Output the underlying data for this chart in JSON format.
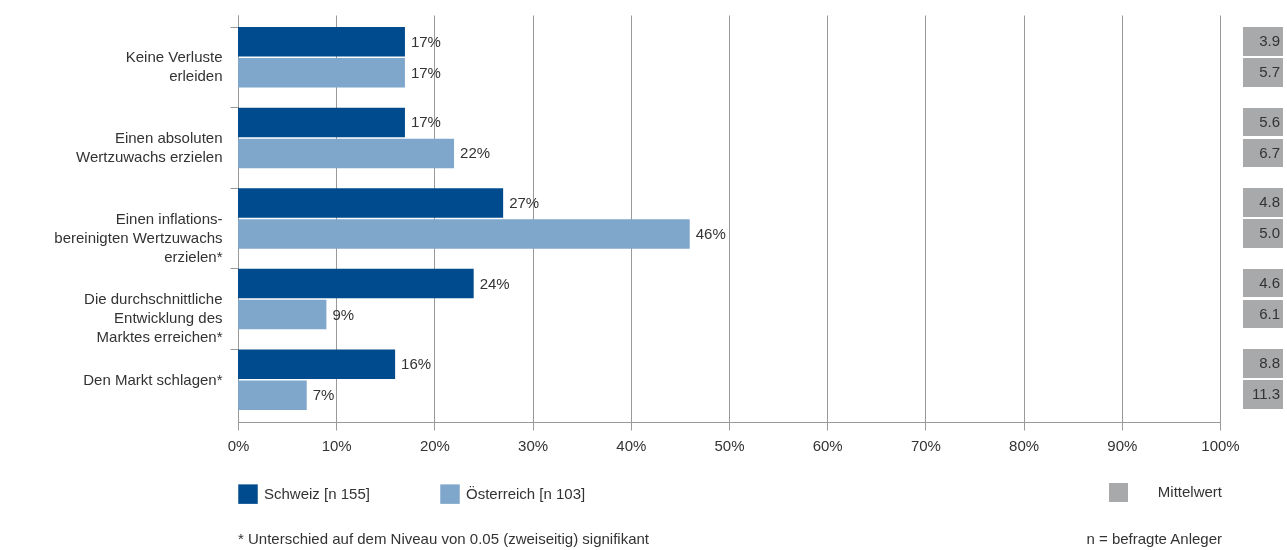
{
  "chart_data": {
    "type": "bar",
    "orientation": "horizontal",
    "categories": [
      "Keine Verluste\nerleiden",
      "Einen absoluten\nWertzuwachs erzielen",
      "Einen inflations-\nbereinigten Wertzuwachs\nerzielen*",
      "Die durchschnittliche\nEntwicklung des\nMarktes erreichen*",
      "Den Markt schlagen*"
    ],
    "series": [
      {
        "name": "Schweiz [n 155]",
        "color": "#004b8d",
        "values": [
          17,
          17,
          27,
          24,
          16
        ],
        "value_labels": [
          "17%",
          "17%",
          "27%",
          "24%",
          "16%"
        ]
      },
      {
        "name": "Österreich [n 103]",
        "color": "#7fa7cb",
        "values": [
          17,
          22,
          46,
          9,
          7
        ],
        "value_labels": [
          "17%",
          "22%",
          "46%",
          "9%",
          "7%"
        ]
      }
    ],
    "xlim": [
      0,
      100
    ],
    "xticks": [
      {
        "value": 0,
        "label": "0%"
      },
      {
        "value": 10,
        "label": "10%"
      },
      {
        "value": 20,
        "label": "20%"
      },
      {
        "value": 30,
        "label": "30%"
      },
      {
        "value": 40,
        "label": "40%"
      },
      {
        "value": 50,
        "label": "50%"
      },
      {
        "value": 60,
        "label": "60%"
      },
      {
        "value": 70,
        "label": "70%"
      },
      {
        "value": 80,
        "label": "80%"
      },
      {
        "value": 90,
        "label": "90%"
      },
      {
        "value": 100,
        "label": "100%"
      }
    ],
    "grid": "x",
    "legend": "bottom left",
    "annotations": [
      "3.9",
      "5.7",
      "5.6",
      "6.7",
      "4.8",
      "5.0",
      "4.6",
      "6.1",
      "8.8",
      "11.3",
      "Mittelwert",
      "* Unterschied auf dem Niveau von 0.05 (zweiseitig) signifikant",
      "n = befragte Anleger"
    ]
  }
}
